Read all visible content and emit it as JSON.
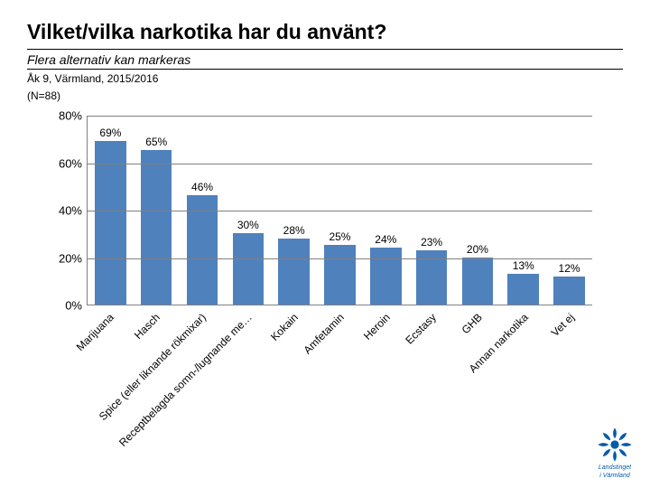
{
  "header": {
    "title": "Vilket/vilka narkotika har du använt?",
    "subtitle": "Flera alternativ kan markeras",
    "meta1": "Åk 9, Värmland, 2015/2016",
    "meta2": "(N=88)"
  },
  "chart": {
    "type": "bar",
    "ylim": [
      0,
      80
    ],
    "ytick_step": 20,
    "ytick_suffix": "%",
    "bar_color": "#4f81bd",
    "grid_color": "#808080",
    "value_suffix": "%",
    "value_fontsize": 12,
    "label_fontsize": 12,
    "label_rotation_deg": -45,
    "categories": [
      "Marijuana",
      "Hasch",
      "Spice (eller liknande rökmixar)",
      "Receptbelagda somn-/lugnande me…",
      "Kokain",
      "Amfetamin",
      "Heroin",
      "Ecstasy",
      "GHB",
      "Annan narkotika",
      "Vet ej"
    ],
    "values": [
      69,
      65,
      46,
      30,
      28,
      25,
      24,
      23,
      20,
      13,
      12
    ]
  },
  "logo": {
    "color": "#005ca9",
    "text_line1": "Landstinget",
    "text_line2": "i Värmland"
  }
}
